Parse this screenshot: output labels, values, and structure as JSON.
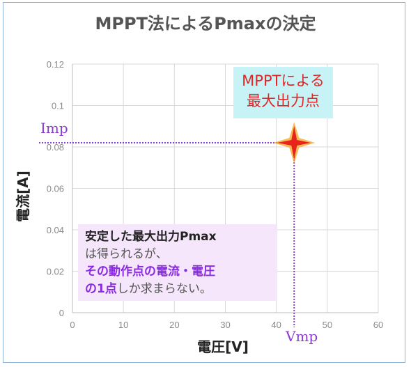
{
  "title": "MPPT法によるPmaxの決定",
  "chart_data": {
    "type": "scatter",
    "xlabel": "電圧[V]",
    "ylabel": "電流[A]",
    "xlim": [
      0,
      60
    ],
    "ylim": [
      0,
      0.12
    ],
    "x_ticks": [
      "0",
      "10",
      "20",
      "30",
      "40",
      "50",
      "60"
    ],
    "y_ticks": [
      "0",
      "0.02",
      "0.04",
      "0.06",
      "0.08",
      "0.1",
      "0.12"
    ],
    "grid": true,
    "points": [
      {
        "x": 43.5,
        "y": 0.082
      }
    ],
    "annotations": {
      "imp_label": "Imp",
      "vmp_label": "Vmp",
      "callout_line1": "MPPTによる",
      "callout_line2": "最大出力点",
      "note_line1": "安定した最大出力Pmax",
      "note_line2": "は得られるが、",
      "note_line3": "その動作点の電流・電圧",
      "note_line4a": "の1点",
      "note_line4b": "しか求まらない。"
    },
    "colors": {
      "marker": "#e8231b",
      "marker_glow": "#f5a623",
      "guide": "#8a3ad1"
    }
  }
}
